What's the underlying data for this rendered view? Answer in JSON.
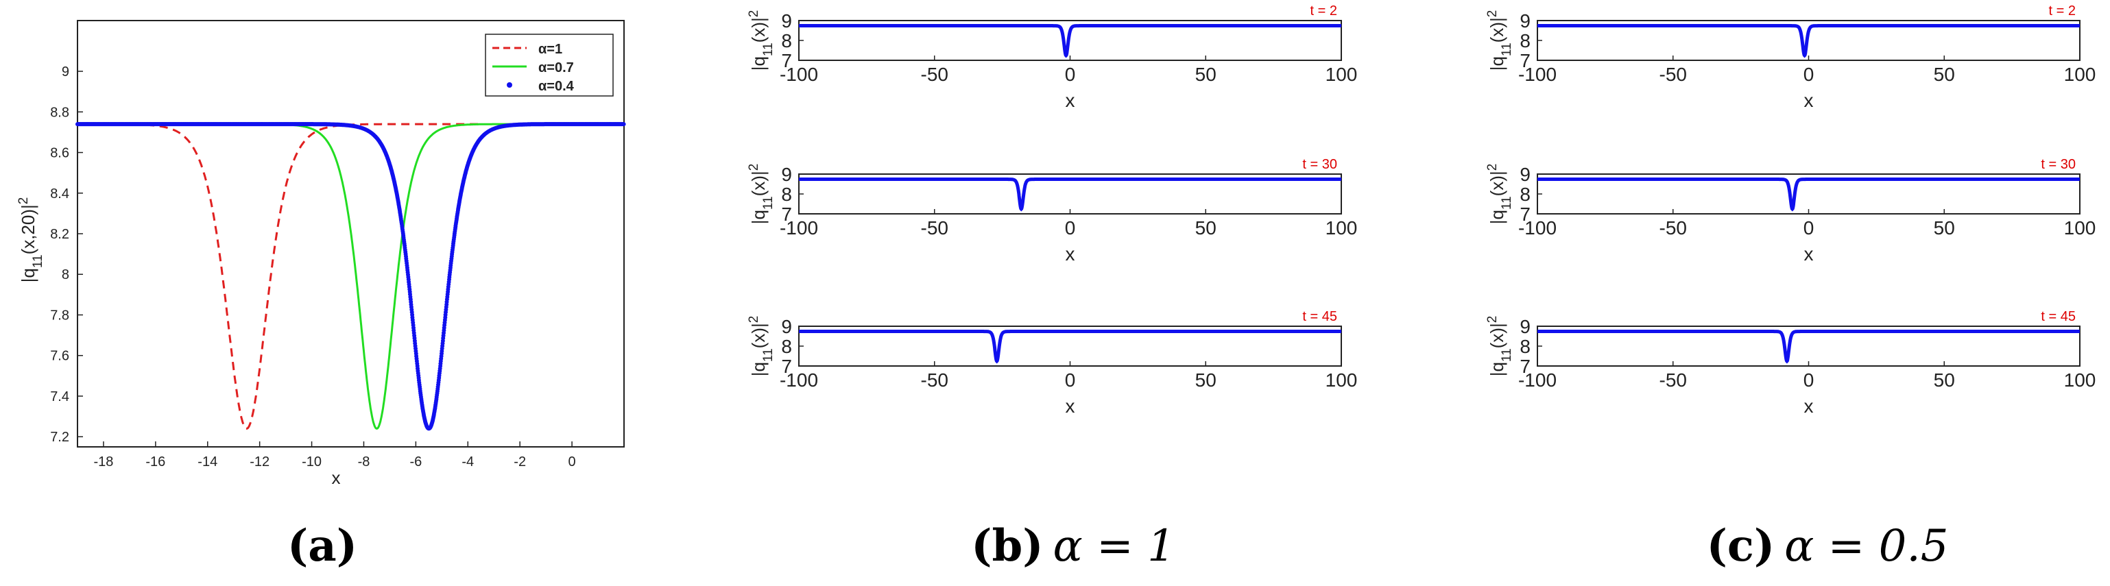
{
  "colors": {
    "dashed": "#e02020",
    "green": "#22dd22",
    "blue": "#1010ee",
    "note": "#dd0000",
    "axis": "#222222"
  },
  "chart_data": [
    {
      "panel": "a",
      "type": "line",
      "xlabel": "x",
      "ylabel": "|q_{11}(x,20)|^2",
      "xlim": [
        -19,
        2
      ],
      "ylim": [
        7.15,
        9.25
      ],
      "xticks": [
        -18,
        -16,
        -14,
        -12,
        -10,
        -8,
        -6,
        -4,
        -2,
        0
      ],
      "yticks": [
        7.2,
        7.4,
        7.6,
        7.8,
        8,
        8.2,
        8.4,
        8.6,
        8.8,
        9
      ],
      "legend_position": "top-right",
      "base": 8.74,
      "depth": 1.5,
      "series": [
        {
          "name": "α=1",
          "center": -12.5,
          "width": 1.05,
          "style": "dashed",
          "color": "#e02020"
        },
        {
          "name": "α=0.7",
          "center": -7.5,
          "width": 0.9,
          "style": "solid",
          "color": "#22dd22"
        },
        {
          "name": "α=0.4",
          "center": -5.5,
          "width": 0.9,
          "style": "dots",
          "color": "#1010ee"
        }
      ]
    },
    {
      "panel": "b",
      "type": "line",
      "caption_label": "(b)",
      "caption_math": "α = 1",
      "xlabel": "x",
      "ylabel": "|q_{11}(x)|^2",
      "xlim": [
        -100,
        100
      ],
      "ylim": [
        7,
        9
      ],
      "xticks": [
        -100,
        -50,
        0,
        50,
        100
      ],
      "yticks": [
        7,
        8,
        9
      ],
      "base": 8.74,
      "depth": 1.5,
      "width": 1.0,
      "plots": [
        {
          "label": "t = 2",
          "center": -1.5
        },
        {
          "label": "t = 30",
          "center": -18
        },
        {
          "label": "t = 45",
          "center": -27
        }
      ]
    },
    {
      "panel": "c",
      "type": "line",
      "caption_label": "(c)",
      "caption_math": "α = 0.5",
      "xlabel": "x",
      "ylabel": "|q_{11}(x)|^2",
      "xlim": [
        -100,
        100
      ],
      "ylim": [
        7,
        9
      ],
      "xticks": [
        -100,
        -50,
        0,
        50,
        100
      ],
      "yticks": [
        7,
        8,
        9
      ],
      "base": 8.74,
      "depth": 1.5,
      "width": 1.0,
      "plots": [
        {
          "label": "t = 2",
          "center": -1.5
        },
        {
          "label": "t = 30",
          "center": -6
        },
        {
          "label": "t = 45",
          "center": -8
        }
      ]
    }
  ],
  "captions": {
    "a": "(a)"
  }
}
